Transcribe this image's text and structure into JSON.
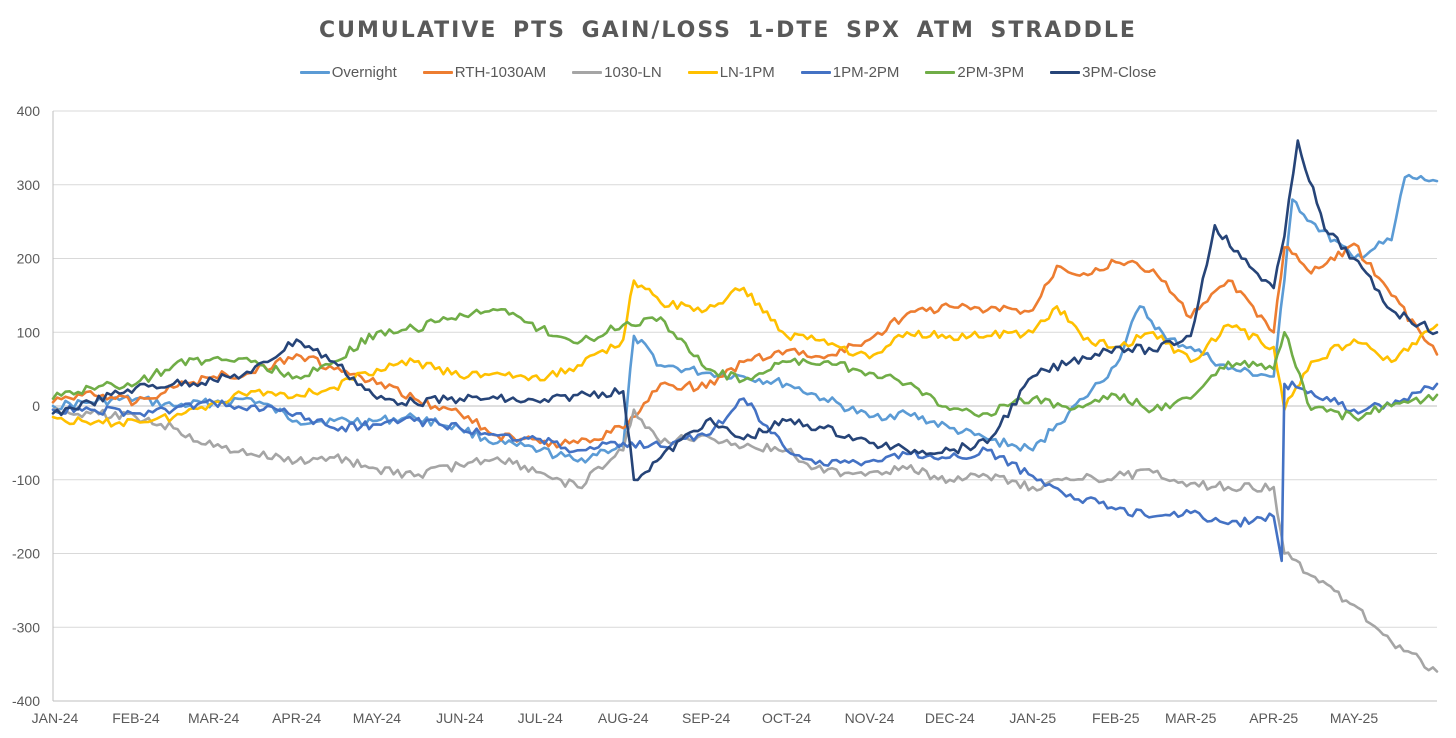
{
  "chart_data": {
    "type": "line",
    "title": "CUMULATIVE PTS GAIN/LOSS 1-DTE SPX ATM STRADDLE",
    "xlabel": "",
    "ylabel": "",
    "ylim": [
      -400,
      400
    ],
    "yticks": [
      400,
      300,
      200,
      100,
      0,
      -100,
      -200,
      -300,
      -400
    ],
    "grid": "horizontal",
    "legend_position": "top",
    "x_tick_labels": [
      "JAN-24",
      "FEB-24",
      "MAR-24",
      "APR-24",
      "MAY-24",
      "JUN-24",
      "JUL-24",
      "AUG-24",
      "SEP-24",
      "OCT-24",
      "NOV-24",
      "DEC-24",
      "JAN-25",
      "FEB-25",
      "MAR-25",
      "APR-25",
      "MAY-25"
    ],
    "x_domain": [
      "2024-01-01",
      "2025-06-01"
    ],
    "series": [
      {
        "name": "Overnight",
        "color": "#5B9BD5",
        "points": [
          [
            "2024-01-01",
            0
          ],
          [
            "2024-01-15",
            5
          ],
          [
            "2024-02-01",
            10
          ],
          [
            "2024-02-15",
            0
          ],
          [
            "2024-03-01",
            5
          ],
          [
            "2024-03-15",
            10
          ],
          [
            "2024-04-01",
            -20
          ],
          [
            "2024-04-15",
            -20
          ],
          [
            "2024-05-01",
            -20
          ],
          [
            "2024-05-15",
            -15
          ],
          [
            "2024-06-01",
            -30
          ],
          [
            "2024-06-15",
            -50
          ],
          [
            "2024-07-01",
            -60
          ],
          [
            "2024-07-15",
            -75
          ],
          [
            "2024-07-25",
            -60
          ],
          [
            "2024-08-01",
            -55
          ],
          [
            "2024-08-05",
            95
          ],
          [
            "2024-08-15",
            55
          ],
          [
            "2024-09-01",
            45
          ],
          [
            "2024-09-15",
            40
          ],
          [
            "2024-10-01",
            30
          ],
          [
            "2024-10-15",
            10
          ],
          [
            "2024-11-01",
            -15
          ],
          [
            "2024-11-15",
            -10
          ],
          [
            "2024-12-01",
            -30
          ],
          [
            "2024-12-15",
            -45
          ],
          [
            "2025-01-01",
            -60
          ],
          [
            "2025-01-10",
            -25
          ],
          [
            "2025-01-20",
            10
          ],
          [
            "2025-02-01",
            55
          ],
          [
            "2025-02-10",
            135
          ],
          [
            "2025-02-20",
            90
          ],
          [
            "2025-03-01",
            80
          ],
          [
            "2025-03-15",
            50
          ],
          [
            "2025-04-01",
            40
          ],
          [
            "2025-04-05",
            170
          ],
          [
            "2025-04-08",
            280
          ],
          [
            "2025-04-15",
            250
          ],
          [
            "2025-05-01",
            200
          ],
          [
            "2025-05-15",
            225
          ],
          [
            "2025-05-20",
            310
          ],
          [
            "2025-06-01",
            305
          ]
        ]
      },
      {
        "name": "RTH-1030AM",
        "color": "#ED7D31",
        "points": [
          [
            "2024-01-01",
            5
          ],
          [
            "2024-01-15",
            20
          ],
          [
            "2024-02-01",
            5
          ],
          [
            "2024-02-15",
            25
          ],
          [
            "2024-03-01",
            40
          ],
          [
            "2024-03-15",
            45
          ],
          [
            "2024-04-01",
            70
          ],
          [
            "2024-04-15",
            50
          ],
          [
            "2024-05-01",
            30
          ],
          [
            "2024-05-15",
            10
          ],
          [
            "2024-06-01",
            -10
          ],
          [
            "2024-06-15",
            -40
          ],
          [
            "2024-07-01",
            -50
          ],
          [
            "2024-07-15",
            -50
          ],
          [
            "2024-08-01",
            -30
          ],
          [
            "2024-08-15",
            30
          ],
          [
            "2024-09-01",
            25
          ],
          [
            "2024-09-15",
            60
          ],
          [
            "2024-10-01",
            75
          ],
          [
            "2024-10-15",
            65
          ],
          [
            "2024-11-01",
            90
          ],
          [
            "2024-11-15",
            125
          ],
          [
            "2024-12-01",
            135
          ],
          [
            "2024-12-15",
            130
          ],
          [
            "2025-01-01",
            130
          ],
          [
            "2025-01-10",
            190
          ],
          [
            "2025-01-20",
            180
          ],
          [
            "2025-02-01",
            195
          ],
          [
            "2025-02-15",
            185
          ],
          [
            "2025-03-01",
            120
          ],
          [
            "2025-03-15",
            170
          ],
          [
            "2025-04-01",
            100
          ],
          [
            "2025-04-05",
            215
          ],
          [
            "2025-04-15",
            180
          ],
          [
            "2025-05-01",
            220
          ],
          [
            "2025-05-15",
            150
          ],
          [
            "2025-06-01",
            70
          ]
        ]
      },
      {
        "name": "1030-LN",
        "color": "#A5A5A5",
        "points": [
          [
            "2024-01-01",
            -5
          ],
          [
            "2024-01-15",
            -10
          ],
          [
            "2024-02-01",
            -15
          ],
          [
            "2024-02-15",
            -30
          ],
          [
            "2024-03-01",
            -55
          ],
          [
            "2024-03-15",
            -65
          ],
          [
            "2024-04-01",
            -75
          ],
          [
            "2024-04-15",
            -70
          ],
          [
            "2024-05-01",
            -85
          ],
          [
            "2024-05-15",
            -95
          ],
          [
            "2024-06-01",
            -80
          ],
          [
            "2024-06-15",
            -70
          ],
          [
            "2024-07-01",
            -90
          ],
          [
            "2024-07-15",
            -110
          ],
          [
            "2024-08-01",
            -60
          ],
          [
            "2024-08-05",
            -5
          ],
          [
            "2024-08-15",
            -50
          ],
          [
            "2024-09-01",
            -40
          ],
          [
            "2024-09-15",
            -55
          ],
          [
            "2024-10-01",
            -60
          ],
          [
            "2024-10-15",
            -90
          ],
          [
            "2024-11-01",
            -90
          ],
          [
            "2024-11-15",
            -85
          ],
          [
            "2024-12-01",
            -100
          ],
          [
            "2024-12-15",
            -95
          ],
          [
            "2025-01-01",
            -110
          ],
          [
            "2025-01-15",
            -100
          ],
          [
            "2025-02-01",
            -95
          ],
          [
            "2025-02-15",
            -90
          ],
          [
            "2025-03-01",
            -105
          ],
          [
            "2025-03-15",
            -110
          ],
          [
            "2025-04-01",
            -110
          ],
          [
            "2025-04-05",
            -200
          ],
          [
            "2025-04-15",
            -230
          ],
          [
            "2025-05-01",
            -270
          ],
          [
            "2025-05-15",
            -320
          ],
          [
            "2025-06-01",
            -360
          ]
        ]
      },
      {
        "name": "LN-1PM",
        "color": "#FFC000",
        "points": [
          [
            "2024-01-01",
            -15
          ],
          [
            "2024-01-15",
            -25
          ],
          [
            "2024-02-01",
            -20
          ],
          [
            "2024-02-15",
            -15
          ],
          [
            "2024-03-01",
            5
          ],
          [
            "2024-03-15",
            20
          ],
          [
            "2024-04-01",
            15
          ],
          [
            "2024-04-15",
            25
          ],
          [
            "2024-05-01",
            50
          ],
          [
            "2024-05-15",
            60
          ],
          [
            "2024-06-01",
            40
          ],
          [
            "2024-06-15",
            45
          ],
          [
            "2024-07-01",
            35
          ],
          [
            "2024-07-15",
            55
          ],
          [
            "2024-08-01",
            90
          ],
          [
            "2024-08-05",
            170
          ],
          [
            "2024-08-15",
            140
          ],
          [
            "2024-09-01",
            130
          ],
          [
            "2024-09-15",
            160
          ],
          [
            "2024-10-01",
            95
          ],
          [
            "2024-10-15",
            90
          ],
          [
            "2024-11-01",
            65
          ],
          [
            "2024-11-15",
            100
          ],
          [
            "2024-12-01",
            95
          ],
          [
            "2024-12-15",
            95
          ],
          [
            "2025-01-01",
            100
          ],
          [
            "2025-01-10",
            135
          ],
          [
            "2025-01-20",
            90
          ],
          [
            "2025-02-01",
            80
          ],
          [
            "2025-02-15",
            100
          ],
          [
            "2025-03-01",
            60
          ],
          [
            "2025-03-15",
            110
          ],
          [
            "2025-04-01",
            80
          ],
          [
            "2025-04-05",
            -5
          ],
          [
            "2025-04-15",
            60
          ],
          [
            "2025-05-01",
            90
          ],
          [
            "2025-05-15",
            60
          ],
          [
            "2025-06-01",
            110
          ]
        ]
      },
      {
        "name": "1PM-2PM",
        "color": "#4472C4",
        "points": [
          [
            "2024-01-01",
            -5
          ],
          [
            "2024-01-15",
            -5
          ],
          [
            "2024-02-01",
            -10
          ],
          [
            "2024-02-15",
            -5
          ],
          [
            "2024-03-01",
            5
          ],
          [
            "2024-03-15",
            0
          ],
          [
            "2024-04-01",
            -10
          ],
          [
            "2024-04-15",
            -30
          ],
          [
            "2024-05-01",
            -25
          ],
          [
            "2024-05-15",
            -20
          ],
          [
            "2024-06-01",
            -30
          ],
          [
            "2024-06-15",
            -40
          ],
          [
            "2024-07-01",
            -45
          ],
          [
            "2024-07-15",
            -60
          ],
          [
            "2024-08-01",
            -50
          ],
          [
            "2024-08-15",
            -55
          ],
          [
            "2024-09-01",
            -40
          ],
          [
            "2024-09-15",
            10
          ],
          [
            "2024-10-01",
            -60
          ],
          [
            "2024-10-15",
            -80
          ],
          [
            "2024-11-01",
            -75
          ],
          [
            "2024-11-15",
            -65
          ],
          [
            "2024-12-01",
            -70
          ],
          [
            "2024-12-15",
            -60
          ],
          [
            "2025-01-01",
            -95
          ],
          [
            "2025-01-15",
            -120
          ],
          [
            "2025-02-01",
            -140
          ],
          [
            "2025-02-15",
            -150
          ],
          [
            "2025-03-01",
            -145
          ],
          [
            "2025-03-15",
            -160
          ],
          [
            "2025-04-01",
            -150
          ],
          [
            "2025-04-04",
            -210
          ],
          [
            "2025-04-05",
            30
          ],
          [
            "2025-04-15",
            20
          ],
          [
            "2025-05-01",
            -5
          ],
          [
            "2025-05-15",
            0
          ],
          [
            "2025-06-01",
            30
          ]
        ]
      },
      {
        "name": "2PM-3PM",
        "color": "#70AD47",
        "points": [
          [
            "2024-01-01",
            10
          ],
          [
            "2024-01-15",
            25
          ],
          [
            "2024-02-01",
            30
          ],
          [
            "2024-02-15",
            55
          ],
          [
            "2024-03-01",
            65
          ],
          [
            "2024-03-15",
            60
          ],
          [
            "2024-04-01",
            40
          ],
          [
            "2024-04-15",
            60
          ],
          [
            "2024-05-01",
            100
          ],
          [
            "2024-05-15",
            105
          ],
          [
            "2024-06-01",
            125
          ],
          [
            "2024-06-15",
            130
          ],
          [
            "2024-07-01",
            105
          ],
          [
            "2024-07-15",
            85
          ],
          [
            "2024-08-01",
            110
          ],
          [
            "2024-08-15",
            120
          ],
          [
            "2024-09-01",
            50
          ],
          [
            "2024-09-15",
            35
          ],
          [
            "2024-10-01",
            60
          ],
          [
            "2024-10-15",
            60
          ],
          [
            "2024-11-01",
            45
          ],
          [
            "2024-11-15",
            30
          ],
          [
            "2024-12-01",
            -5
          ],
          [
            "2024-12-15",
            -10
          ],
          [
            "2025-01-01",
            10
          ],
          [
            "2025-01-15",
            -5
          ],
          [
            "2025-02-01",
            15
          ],
          [
            "2025-02-15",
            -5
          ],
          [
            "2025-03-01",
            10
          ],
          [
            "2025-03-15",
            60
          ],
          [
            "2025-04-01",
            50
          ],
          [
            "2025-04-05",
            100
          ],
          [
            "2025-04-15",
            -5
          ],
          [
            "2025-05-01",
            -15
          ],
          [
            "2025-05-15",
            0
          ],
          [
            "2025-06-01",
            15
          ]
        ]
      },
      {
        "name": "3PM-Close",
        "color": "#264478",
        "points": [
          [
            "2024-01-01",
            -10
          ],
          [
            "2024-01-15",
            5
          ],
          [
            "2024-02-01",
            25
          ],
          [
            "2024-02-15",
            30
          ],
          [
            "2024-03-01",
            35
          ],
          [
            "2024-03-15",
            45
          ],
          [
            "2024-04-01",
            90
          ],
          [
            "2024-04-15",
            60
          ],
          [
            "2024-05-01",
            10
          ],
          [
            "2024-05-15",
            5
          ],
          [
            "2024-06-01",
            10
          ],
          [
            "2024-06-15",
            10
          ],
          [
            "2024-07-01",
            5
          ],
          [
            "2024-07-15",
            15
          ],
          [
            "2024-08-01",
            20
          ],
          [
            "2024-08-05",
            -100
          ],
          [
            "2024-08-15",
            -70
          ],
          [
            "2024-09-01",
            -20
          ],
          [
            "2024-09-15",
            -45
          ],
          [
            "2024-10-01",
            -20
          ],
          [
            "2024-10-15",
            -30
          ],
          [
            "2024-11-01",
            -50
          ],
          [
            "2024-11-15",
            -60
          ],
          [
            "2024-12-01",
            -60
          ],
          [
            "2024-12-15",
            -50
          ],
          [
            "2025-01-01",
            40
          ],
          [
            "2025-01-15",
            60
          ],
          [
            "2025-02-01",
            80
          ],
          [
            "2025-02-15",
            75
          ],
          [
            "2025-03-01",
            95
          ],
          [
            "2025-03-10",
            245
          ],
          [
            "2025-03-20",
            200
          ],
          [
            "2025-04-01",
            160
          ],
          [
            "2025-04-05",
            230
          ],
          [
            "2025-04-10",
            360
          ],
          [
            "2025-04-20",
            240
          ],
          [
            "2025-05-01",
            200
          ],
          [
            "2025-05-15",
            130
          ],
          [
            "2025-06-01",
            100
          ]
        ]
      }
    ]
  }
}
